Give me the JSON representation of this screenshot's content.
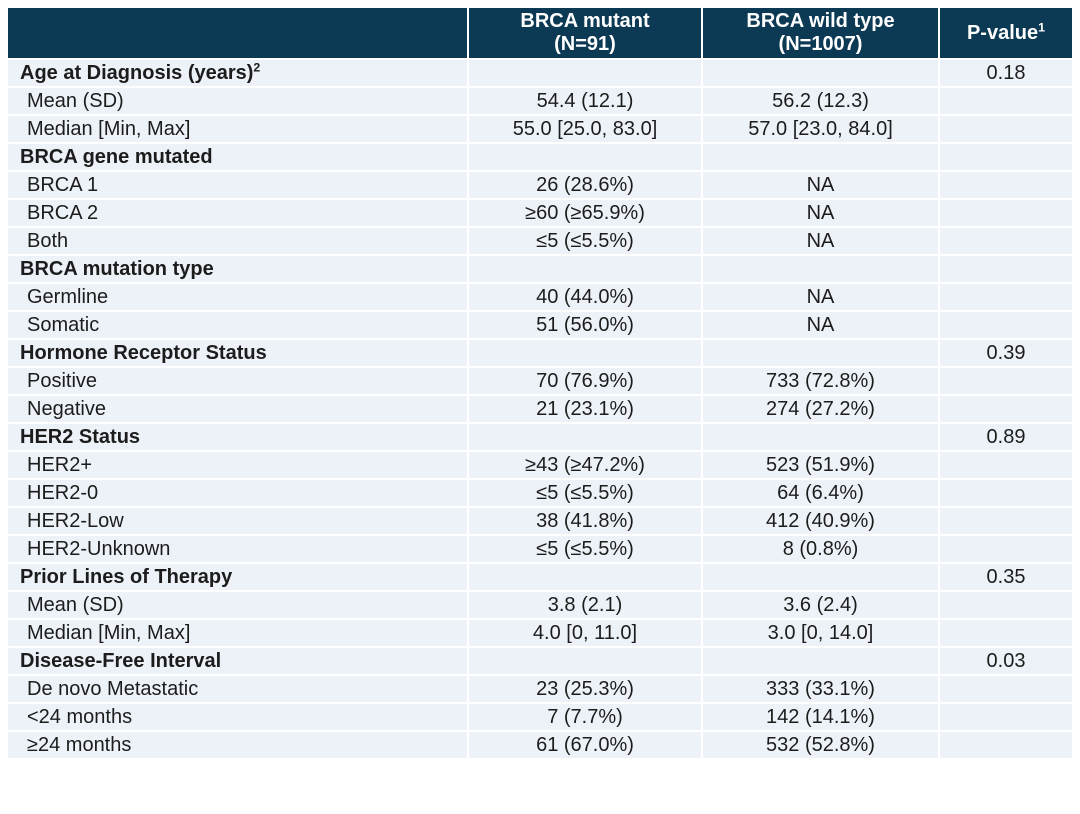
{
  "colors": {
    "header_bg": "#0c3a55",
    "header_text": "#ffffff",
    "cell_bg": "#edf2f9",
    "grid_line": "#ffffff",
    "body_text": "#1c1c1c"
  },
  "table": {
    "columns": [
      {
        "label": "",
        "sublabel": ""
      },
      {
        "label": "BRCA mutant",
        "sublabel": "(N=91)"
      },
      {
        "label": "BRCA wild type",
        "sublabel": "(N=1007)"
      },
      {
        "label": "P-value",
        "sup": "1"
      }
    ],
    "rows": [
      {
        "label": "Age at Diagnosis (years)",
        "sup": "2",
        "bold": true,
        "mutant": "",
        "wild": "",
        "p": "0.18"
      },
      {
        "label": "Mean (SD)",
        "bold": false,
        "mutant": "54.4 (12.1)",
        "wild": "56.2 (12.3)",
        "p": ""
      },
      {
        "label": "Median [Min, Max]",
        "bold": false,
        "mutant": "55.0 [25.0, 83.0]",
        "wild": "57.0 [23.0, 84.0]",
        "p": ""
      },
      {
        "label": "BRCA gene mutated",
        "bold": true,
        "mutant": "",
        "wild": "",
        "p": ""
      },
      {
        "label": "BRCA 1",
        "bold": false,
        "mutant": "26 (28.6%)",
        "wild": "NA",
        "p": ""
      },
      {
        "label": "BRCA 2",
        "bold": false,
        "mutant": "≥60 (≥65.9%)",
        "wild": "NA",
        "p": ""
      },
      {
        "label": "Both",
        "bold": false,
        "mutant": "≤5 (≤5.5%)",
        "wild": "NA",
        "p": ""
      },
      {
        "label": "BRCA mutation type",
        "bold": true,
        "mutant": "",
        "wild": "",
        "p": ""
      },
      {
        "label": "Germline",
        "bold": false,
        "mutant": "40 (44.0%)",
        "wild": "NA",
        "p": ""
      },
      {
        "label": "Somatic",
        "bold": false,
        "mutant": "51 (56.0%)",
        "wild": "NA",
        "p": ""
      },
      {
        "label": "Hormone Receptor Status",
        "bold": true,
        "mutant": "",
        "wild": "",
        "p": "0.39"
      },
      {
        "label": "Positive",
        "bold": false,
        "mutant": "70 (76.9%)",
        "wild": "733 (72.8%)",
        "p": ""
      },
      {
        "label": "Negative",
        "bold": false,
        "mutant": "21 (23.1%)",
        "wild": "274 (27.2%)",
        "p": ""
      },
      {
        "label": "HER2 Status",
        "bold": true,
        "mutant": "",
        "wild": "",
        "p": "0.89"
      },
      {
        "label": "HER2+",
        "bold": false,
        "mutant": "≥43 (≥47.2%)",
        "wild": "523 (51.9%)",
        "p": ""
      },
      {
        "label": "HER2-0",
        "bold": false,
        "mutant": "≤5 (≤5.5%)",
        "wild": "64 (6.4%)",
        "p": ""
      },
      {
        "label": "HER2-Low",
        "bold": false,
        "mutant": "38 (41.8%)",
        "wild": "412 (40.9%)",
        "p": ""
      },
      {
        "label": "HER2-Unknown",
        "bold": false,
        "mutant": "≤5 (≤5.5%)",
        "wild": "8 (0.8%)",
        "p": ""
      },
      {
        "label": "Prior Lines of Therapy",
        "bold": true,
        "mutant": "",
        "wild": "",
        "p": "0.35"
      },
      {
        "label": "Mean (SD)",
        "bold": false,
        "mutant": "3.8 (2.1)",
        "wild": "3.6 (2.4)",
        "p": ""
      },
      {
        "label": "Median [Min, Max]",
        "bold": false,
        "mutant": "4.0 [0, 11.0]",
        "wild": "3.0 [0, 14.0]",
        "p": ""
      },
      {
        "label": "Disease-Free Interval",
        "bold": true,
        "mutant": "",
        "wild": "",
        "p": "0.03"
      },
      {
        "label": "De novo Metastatic",
        "bold": false,
        "mutant": "23 (25.3%)",
        "wild": "333 (33.1%)",
        "p": ""
      },
      {
        "label": "<24 months",
        "bold": false,
        "mutant": "7 (7.7%)",
        "wild": "142 (14.1%)",
        "p": ""
      },
      {
        "label": "≥24 months",
        "bold": false,
        "mutant": "61 (67.0%)",
        "wild": "532 (52.8%)",
        "p": ""
      }
    ]
  }
}
